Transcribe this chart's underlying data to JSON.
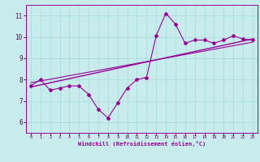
{
  "xlabel": "Windchill (Refroidissement éolien,°C)",
  "bg_color": "#c8ecec",
  "line_color": "#990099",
  "grid_color": "#aadddd",
  "xlim": [
    -0.5,
    23.5
  ],
  "ylim": [
    5.5,
    11.5
  ],
  "xticks": [
    0,
    1,
    2,
    3,
    4,
    5,
    6,
    7,
    8,
    9,
    10,
    11,
    12,
    13,
    14,
    15,
    16,
    17,
    18,
    19,
    20,
    21,
    22,
    23
  ],
  "yticks": [
    6,
    7,
    8,
    9,
    10,
    11
  ],
  "main_line_x": [
    0,
    1,
    2,
    3,
    4,
    5,
    6,
    7,
    8,
    9,
    10,
    11,
    12,
    13,
    14,
    15,
    16,
    17,
    18,
    19,
    20,
    21,
    22,
    23
  ],
  "main_line_y": [
    7.7,
    8.0,
    7.5,
    7.6,
    7.7,
    7.7,
    7.3,
    6.6,
    6.2,
    6.9,
    7.6,
    8.0,
    8.1,
    10.05,
    11.1,
    10.6,
    9.7,
    9.85,
    9.85,
    9.7,
    9.85,
    10.05,
    9.9,
    9.85
  ],
  "trend_line_x": [
    0,
    23
  ],
  "trend_line_y": [
    7.65,
    9.9
  ],
  "avg_line_x": [
    0,
    23
  ],
  "avg_line_y": [
    7.85,
    9.75
  ]
}
